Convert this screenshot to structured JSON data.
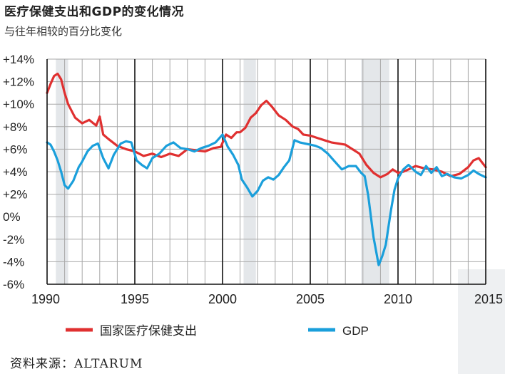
{
  "title": "医疗保健支出和GDP的变化情况",
  "subtitle": "与往年相较的百分比变化",
  "source": "资料来源：ALTARUM",
  "colors": {
    "health": "#e03030",
    "gdp": "#1a9fdb",
    "recession": "#e4e7ea",
    "grid": "#a8a8a8"
  },
  "chart_data": {
    "type": "line",
    "title": "医疗保健支出和GDP的变化情况",
    "subtitle": "与往年相较的百分比变化",
    "xlim": [
      1990,
      2015
    ],
    "ylim": [
      -6,
      14
    ],
    "x_ticks": [
      1990,
      1995,
      2000,
      2005,
      2010,
      2015
    ],
    "y_ticks": [
      14,
      12,
      10,
      8,
      6,
      4,
      2,
      0,
      -2,
      -4,
      -6
    ],
    "y_tick_labels": [
      "+14%",
      "+12%",
      "+10%",
      "+8%",
      "+6%",
      "+4%",
      "+2%",
      "0%",
      "-2%",
      "-4%",
      "-6%"
    ],
    "recessions": [
      [
        1990.5,
        1991.2
      ],
      [
        2001.2,
        2001.9
      ],
      [
        2007.9,
        2009.5
      ]
    ],
    "series": [
      {
        "name": "国家医疗保健支出",
        "color": "#e03030",
        "x": [
          1990,
          1990.2,
          1990.4,
          1990.6,
          1990.8,
          1991,
          1991.2,
          1991.4,
          1991.6,
          1992,
          1992.4,
          1992.8,
          1993,
          1993.2,
          1993.5,
          1994,
          1994.5,
          1995,
          1995.5,
          1996,
          1996.5,
          1997,
          1997.5,
          1998,
          1998.5,
          1999,
          1999.5,
          1999.9,
          2000.2,
          2000.5,
          2000.8,
          2001,
          2001.3,
          2001.6,
          2001.9,
          2002.2,
          2002.5,
          2002.8,
          2003.2,
          2003.6,
          2004,
          2004.3,
          2004.6,
          2005,
          2005.4,
          2005.8,
          2006.2,
          2006.6,
          2007,
          2007.4,
          2007.8,
          2008.2,
          2008.6,
          2009,
          2009.4,
          2009.7,
          2010,
          2010.3,
          2010.6,
          2011,
          2011.5,
          2012,
          2012.5,
          2013,
          2013.5,
          2014,
          2014.3,
          2014.6,
          2014.8,
          2015
        ],
        "values": [
          11,
          11.8,
          12.5,
          12.7,
          12.2,
          11,
          10,
          9.4,
          8.8,
          8.3,
          8.6,
          8.1,
          8.9,
          7.3,
          6.9,
          6.3,
          6.0,
          5.8,
          5.4,
          5.6,
          5.3,
          5.6,
          5.4,
          6.0,
          5.9,
          5.8,
          6.1,
          6.2,
          7.3,
          7.0,
          7.5,
          7.5,
          7.9,
          8.8,
          9.2,
          9.9,
          10.3,
          9.8,
          9.0,
          8.6,
          8.0,
          7.8,
          7.3,
          7.2,
          7.0,
          6.8,
          6.6,
          6.5,
          6.4,
          6.0,
          5.6,
          4.6,
          3.9,
          3.5,
          3.8,
          4.2,
          3.9,
          4.0,
          4.2,
          4.5,
          4.3,
          4.2,
          4.0,
          3.6,
          3.8,
          4.4,
          5.0,
          5.2,
          4.8,
          4.4
        ]
      },
      {
        "name": "GDP",
        "color": "#1a9fdb",
        "x": [
          1990,
          1990.2,
          1990.4,
          1990.6,
          1990.8,
          1991,
          1991.2,
          1991.5,
          1991.8,
          1992,
          1992.3,
          1992.6,
          1992.9,
          1993.2,
          1993.5,
          1993.8,
          1994.2,
          1994.5,
          1994.8,
          1995.1,
          1995.4,
          1995.7,
          1996,
          1996.4,
          1996.8,
          1997.2,
          1997.6,
          1998,
          1998.4,
          1998.8,
          1999.2,
          1999.6,
          2000,
          2000.3,
          2000.6,
          2000.9,
          2001.1,
          2001.4,
          2001.7,
          2002,
          2002.3,
          2002.6,
          2002.9,
          2003.2,
          2003.5,
          2003.8,
          2004.1,
          2004.4,
          2004.7,
          2005,
          2005.3,
          2005.6,
          2006,
          2006.4,
          2006.8,
          2007.2,
          2007.6,
          2007.9,
          2008.1,
          2008.3,
          2008.6,
          2008.9,
          2009.1,
          2009.3,
          2009.6,
          2009.8,
          2010,
          2010.3,
          2010.6,
          2011,
          2011.3,
          2011.6,
          2011.9,
          2012.2,
          2012.5,
          2012.8,
          2013.2,
          2013.6,
          2014,
          2014.3,
          2014.6,
          2015
        ],
        "values": [
          6.6,
          6.4,
          5.8,
          5.0,
          4.0,
          2.8,
          2.5,
          3.2,
          4.4,
          4.9,
          5.8,
          6.3,
          6.5,
          5.2,
          4.3,
          5.5,
          6.5,
          6.7,
          6.6,
          5.0,
          4.6,
          4.3,
          5.2,
          5.6,
          6.3,
          6.6,
          6.1,
          6.0,
          5.8,
          6.1,
          6.3,
          6.6,
          7.3,
          6.2,
          5.5,
          4.6,
          3.3,
          2.6,
          1.8,
          2.3,
          3.2,
          3.5,
          3.3,
          3.7,
          4.4,
          5.0,
          6.8,
          6.6,
          6.5,
          6.4,
          6.3,
          6.1,
          5.6,
          4.9,
          4.2,
          4.5,
          4.5,
          3.9,
          3.6,
          1.9,
          -1.8,
          -4.3,
          -3.5,
          -2.5,
          0.6,
          2.4,
          3.4,
          4.2,
          4.6,
          4.0,
          3.7,
          4.5,
          3.9,
          4.4,
          3.6,
          3.8,
          3.5,
          3.4,
          3.7,
          4.1,
          3.8,
          3.5
        ]
      }
    ],
    "legend": {
      "position": "bottom",
      "entries": [
        "国家医疗保健支出",
        "GDP"
      ]
    }
  }
}
